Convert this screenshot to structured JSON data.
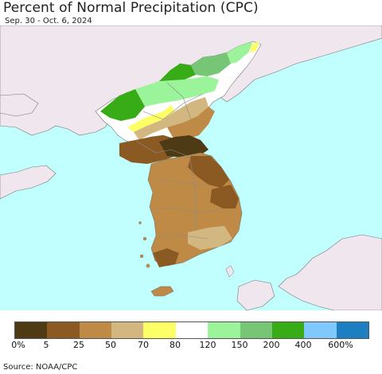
{
  "header": {
    "title": "Percent of Normal Precipitation (CPC)",
    "date_range": "Sep. 30 - Oct. 6, 2024"
  },
  "legend": {
    "colors": [
      "#4e3a14",
      "#8b5a23",
      "#bf8a45",
      "#d2b880",
      "#fdff66",
      "#ffffff",
      "#9bf39a",
      "#76c676",
      "#38ac17",
      "#7fc9ff",
      "#1b7fc2"
    ],
    "labels": [
      "0%",
      "5",
      "25",
      "50",
      "70",
      "80",
      "120",
      "150",
      "200",
      "400",
      "600%"
    ]
  },
  "footer": {
    "source": "Source: NOAA/CPC"
  },
  "map_colors": {
    "ocean": "#c0fffe",
    "land_outside": "#efe6ee",
    "border": "#888888"
  }
}
